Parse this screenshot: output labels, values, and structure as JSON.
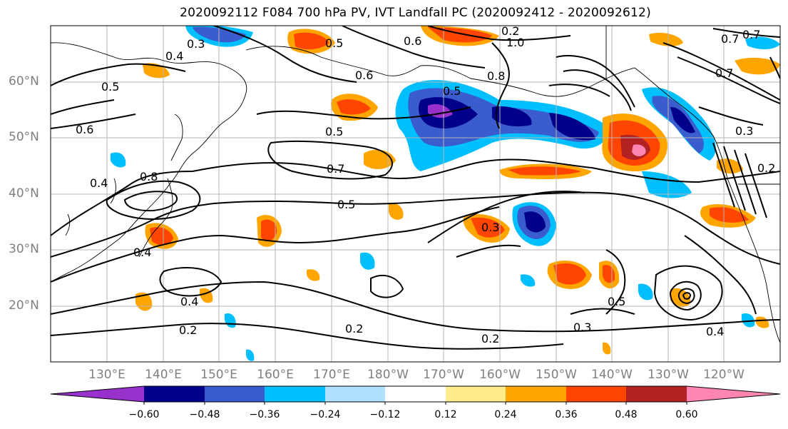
{
  "title": "2020092112 F084 700 hPa PV, IVT Landfall PC (2020092412 - 2020092612)",
  "map": {
    "projection": "PlateCarree",
    "lon_range": [
      120,
      250
    ],
    "lat_range": [
      10,
      70
    ],
    "grid": true,
    "lat_labels": [
      "60°N",
      "50°N",
      "40°N",
      "30°N",
      "20°N"
    ],
    "lon_labels": [
      "130°E",
      "140°E",
      "150°E",
      "160°E",
      "170°E",
      "180°W",
      "170°W",
      "160°W",
      "150°W",
      "140°W",
      "130°W",
      "120°W"
    ],
    "contour_labels": [
      "0.3",
      "0.4",
      "0.5",
      "0.6",
      "0.6",
      "0.5",
      "0.7",
      "0.8",
      "0.4",
      "0.5",
      "0.4",
      "0.4",
      "0.2",
      "0.2",
      "0.3",
      "0.5",
      "0.2",
      "0.3",
      "0.5",
      "0.6",
      "0.2",
      "1.0",
      "0.8",
      "0.5",
      "0.7",
      "0.3",
      "0.7",
      "0.2",
      "0.7",
      "0.4"
    ]
  },
  "colorbar": {
    "ticks": [
      "−0.60",
      "−0.48",
      "−0.36",
      "−0.24",
      "−0.12",
      "0.12",
      "0.24",
      "0.36",
      "0.48",
      "0.60"
    ],
    "colors": [
      "#9932cc",
      "#00008b",
      "#3a5ccc",
      "#00bfff",
      "#b0e2ff",
      "#ffffff",
      "#ffec8b",
      "#ffa500",
      "#ff4500",
      "#b22222",
      "#ff85b3"
    ]
  },
  "shading_colors": {
    "neg_strong": "#9932cc",
    "neg_2": "#00008b",
    "neg_3": "#3a5ccc",
    "neg_4": "#00bfff",
    "neg_5": "#b0e2ff",
    "pos_1": "#ffec8b",
    "pos_2": "#ffa500",
    "pos_3": "#ff4500",
    "pos_4": "#b22222",
    "pos_5": "#ff85b3"
  }
}
